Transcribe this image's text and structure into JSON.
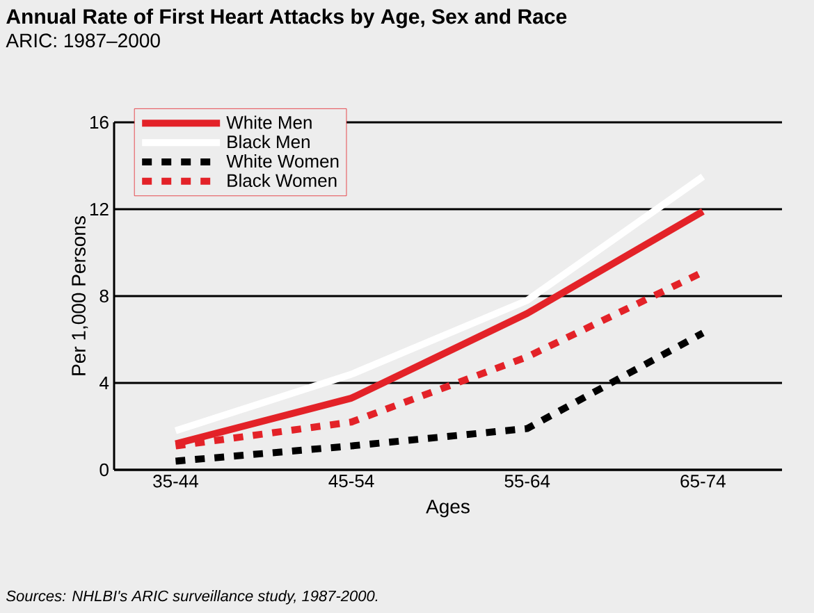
{
  "chart_data": {
    "type": "line",
    "title": "Annual Rate of First Heart Attacks by Age, Sex and Race",
    "subtitle": "ARIC: 1987–2000",
    "xlabel": "Ages",
    "ylabel": "Per 1,000 Persons",
    "annotations": [
      "*Sources: NHLBI's ARIC surveillance study, 1987-2000.*"
    ],
    "categories": [
      "35-44",
      "45-54",
      "55-64",
      "65-74"
    ],
    "series": [
      {
        "name": "White Men",
        "color": "#e32228",
        "line_style": "solid",
        "values": [
          1.2,
          3.3,
          7.2,
          11.9
        ]
      },
      {
        "name": "Black Men",
        "color": "#ffffff",
        "line_style": "solid",
        "values": [
          1.8,
          4.4,
          7.8,
          13.5
        ]
      },
      {
        "name": "White Women",
        "color": "#000000",
        "line_style": "dashed",
        "values": [
          0.4,
          1.1,
          1.9,
          6.3
        ]
      },
      {
        "name": "Black Women",
        "color": "#e32228",
        "line_style": "dashed",
        "values": [
          1.1,
          2.2,
          5.2,
          9.1
        ]
      }
    ],
    "ylim": [
      0,
      16
    ],
    "yticks": [
      0,
      4,
      8,
      12,
      16
    ],
    "grid": "y",
    "legend": "top left"
  }
}
